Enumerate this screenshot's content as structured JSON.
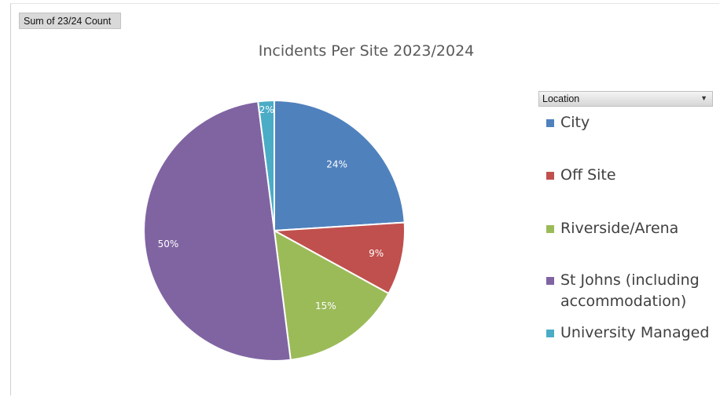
{
  "field_button": {
    "label": "Sum of 23/24 Count"
  },
  "location_filter": {
    "label": "Location",
    "arrow": "▼"
  },
  "chart_data": {
    "type": "pie",
    "title": "Incidents Per Site 2023/2024",
    "legend_placement": "right",
    "slices": [
      {
        "label": "City",
        "value": 24,
        "display": "24%",
        "color": "#4F81BD"
      },
      {
        "label": "Off Site",
        "value": 9,
        "display": "9%",
        "color": "#C0504D"
      },
      {
        "label": "Riverside/Arena",
        "value": 15,
        "display": "15%",
        "color": "#9BBB59"
      },
      {
        "label": "St Johns (including accommodation)",
        "value": 50,
        "display": "50%",
        "color": "#8064A2"
      },
      {
        "label": "University Managed",
        "value": 2,
        "display": "2%",
        "color": "#4BACC6"
      }
    ]
  }
}
